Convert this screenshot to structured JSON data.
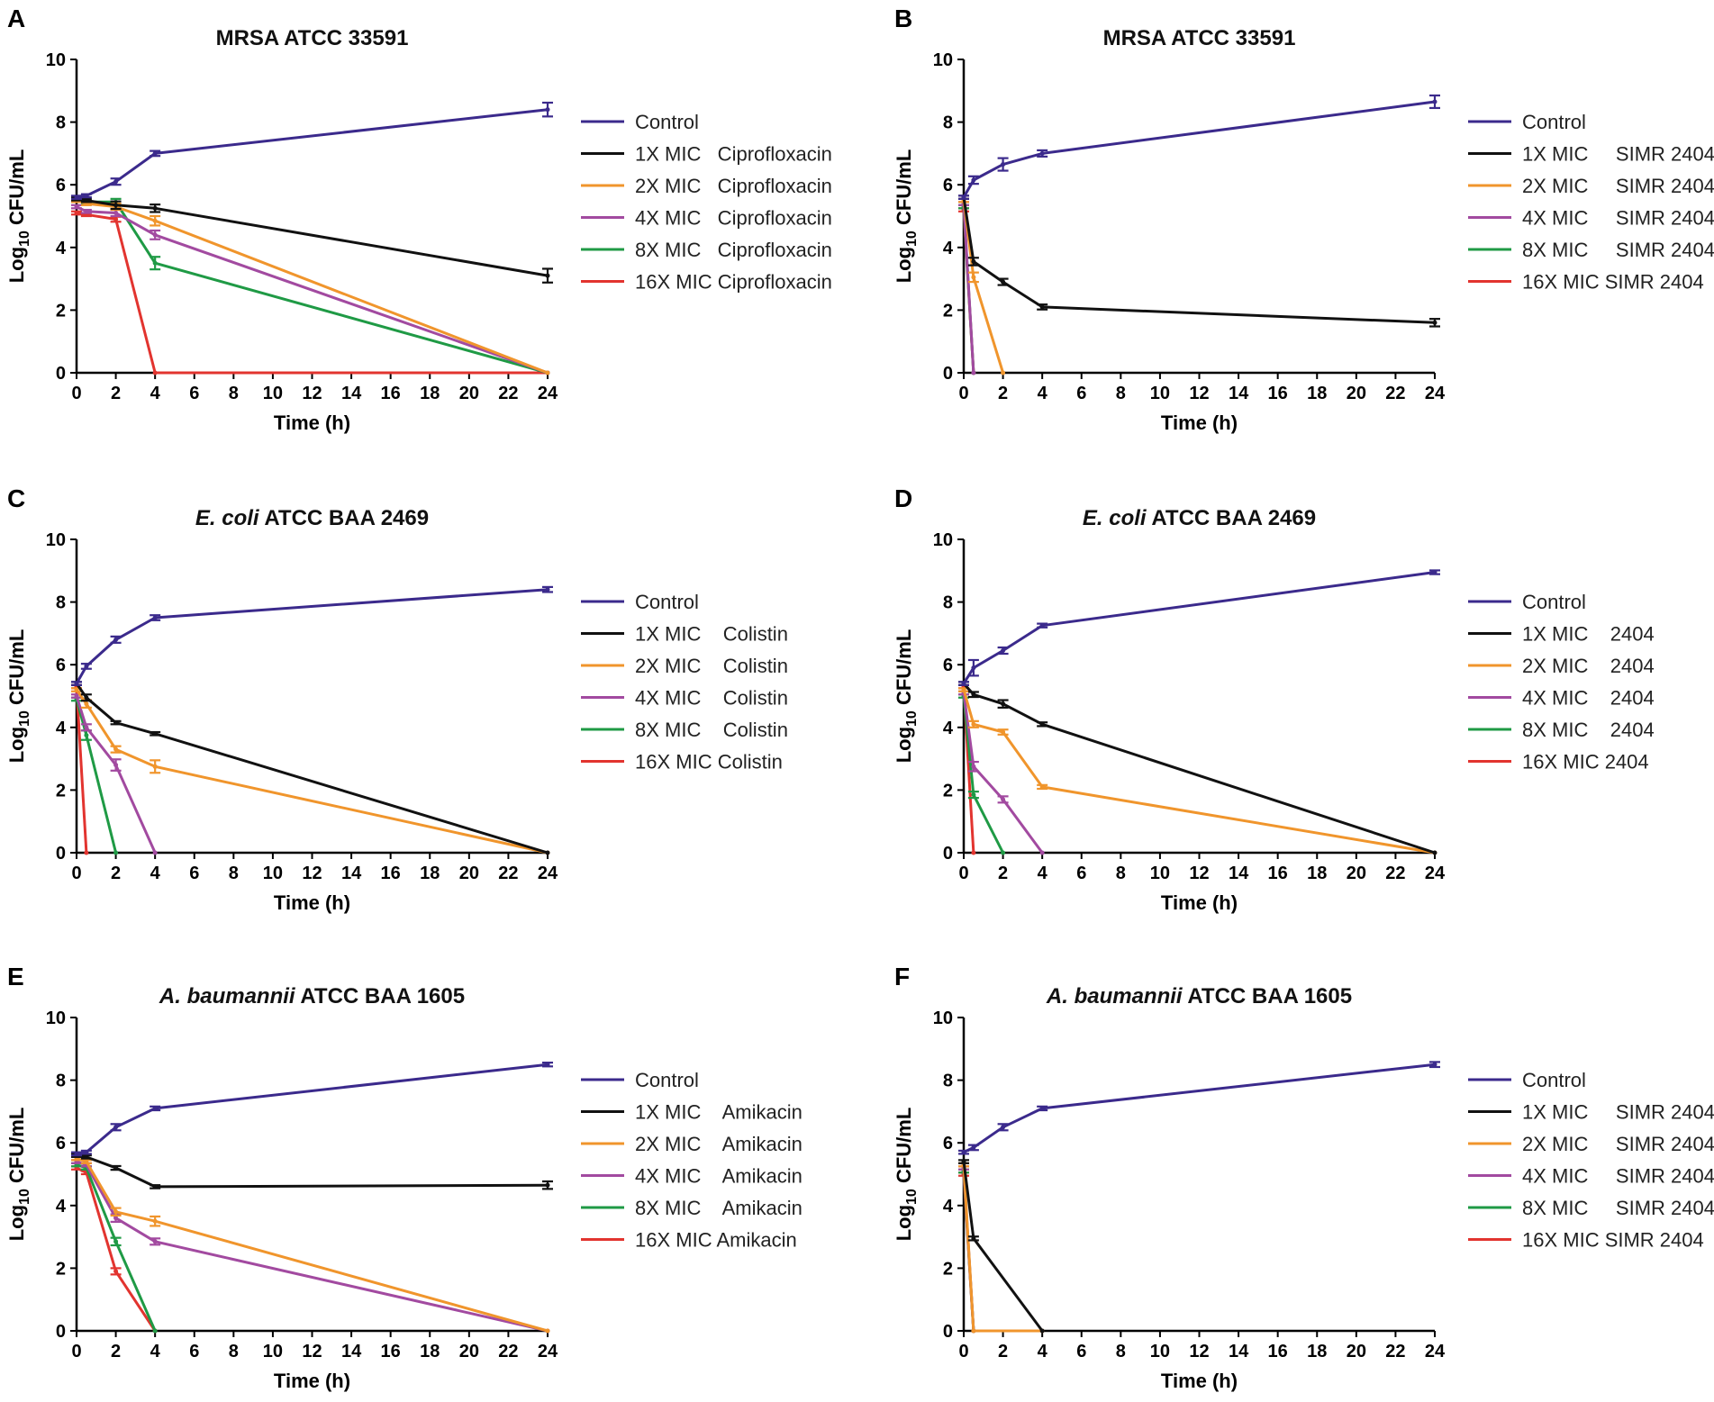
{
  "colors": {
    "control": "#3b2a8c",
    "1x": "#111111",
    "2x": "#f0952c",
    "4x": "#a24aa0",
    "8x": "#1f9a45",
    "16x": "#e2342f"
  },
  "chart_data": [
    {
      "panel": "A",
      "type": "line",
      "title": "MRSA ATCC 33591",
      "xlabel": "Time (h)",
      "ylabel": "Log10 CFU/mL",
      "ylabel_main": "Log",
      "ylabel_sub": "10",
      "ylabel_rest": " CFU/mL",
      "xlim": [
        0,
        24
      ],
      "ylim": [
        0,
        10
      ],
      "xticks": [
        0,
        2,
        4,
        6,
        8,
        10,
        12,
        14,
        16,
        18,
        20,
        22,
        24
      ],
      "yticks": [
        0,
        2,
        4,
        6,
        8,
        10
      ],
      "series": [
        {
          "name": "Control",
          "key": "control",
          "x": [
            0,
            0.5,
            2,
            4,
            24
          ],
          "y": [
            5.6,
            5.65,
            6.1,
            7.0,
            8.4
          ],
          "err": [
            0.05,
            0.05,
            0.1,
            0.08,
            0.22
          ]
        },
        {
          "name": "1X MIC   Ciprofloxacin",
          "key": "1x",
          "x": [
            0,
            0.5,
            2,
            4,
            24
          ],
          "y": [
            5.55,
            5.5,
            5.35,
            5.25,
            3.1
          ],
          "err": [
            0.05,
            0.05,
            0.12,
            0.12,
            0.22
          ]
        },
        {
          "name": "2X MIC   Ciprofloxacin",
          "key": "2x",
          "x": [
            0,
            0.5,
            2,
            4,
            24
          ],
          "y": [
            5.5,
            5.4,
            5.3,
            4.85,
            0
          ],
          "err": [
            0.05,
            0.05,
            0.1,
            0.15,
            0
          ]
        },
        {
          "name": "4X MIC   Ciprofloxacin",
          "key": "4x",
          "x": [
            0,
            0.5,
            2,
            4,
            24
          ],
          "y": [
            5.3,
            5.15,
            5.1,
            4.4,
            0
          ],
          "err": [
            0.05,
            0.05,
            0.1,
            0.14,
            0
          ]
        },
        {
          "name": "8X MIC   Ciprofloxacin",
          "key": "8x",
          "x": [
            0,
            0.5,
            2,
            4,
            24
          ],
          "y": [
            5.5,
            5.45,
            5.45,
            3.5,
            0
          ],
          "err": [
            0.05,
            0.05,
            0.1,
            0.2,
            0
          ]
        },
        {
          "name": "16X MIC Ciprofloxacin",
          "key": "16x",
          "x": [
            0,
            0.5,
            2,
            4,
            24
          ],
          "y": [
            5.1,
            5.05,
            4.9,
            0,
            0
          ],
          "err": [
            0.05,
            0.05,
            0.08,
            0,
            0
          ]
        }
      ]
    },
    {
      "panel": "B",
      "type": "line",
      "title": "MRSA ATCC 33591",
      "xlabel": "Time (h)",
      "ylabel": "Log10 CFU/mL",
      "ylabel_main": "Log",
      "ylabel_sub": "10",
      "ylabel_rest": " CFU/mL",
      "xlim": [
        0,
        24
      ],
      "ylim": [
        0,
        10
      ],
      "xticks": [
        0,
        2,
        4,
        6,
        8,
        10,
        12,
        14,
        16,
        18,
        20,
        22,
        24
      ],
      "yticks": [
        0,
        2,
        4,
        6,
        8,
        10
      ],
      "series": [
        {
          "name": "Control",
          "key": "control",
          "x": [
            0,
            0.5,
            2,
            4,
            24
          ],
          "y": [
            5.6,
            6.15,
            6.65,
            7.0,
            8.65
          ],
          "err": [
            0.05,
            0.12,
            0.2,
            0.1,
            0.2
          ]
        },
        {
          "name": "1X MIC     SIMR 2404",
          "key": "1x",
          "x": [
            0,
            0.5,
            2,
            4,
            24
          ],
          "y": [
            5.6,
            3.55,
            2.9,
            2.1,
            1.6
          ],
          "err": [
            0.05,
            0.12,
            0.1,
            0.08,
            0.12
          ]
        },
        {
          "name": "2X MIC     SIMR 2404",
          "key": "2x",
          "x": [
            0,
            0.5,
            2
          ],
          "y": [
            5.5,
            3.05,
            0
          ],
          "err": [
            0.05,
            0.15,
            0
          ]
        },
        {
          "name": "4X MIC     SIMR 2404",
          "key": "4x",
          "x": [
            0,
            0.5
          ],
          "y": [
            5.4,
            0
          ],
          "err": [
            0.05,
            0
          ]
        },
        {
          "name": "8X MIC     SIMR 2404",
          "key": "8x",
          "x": [
            0,
            0.5
          ],
          "y": [
            5.3,
            0
          ],
          "err": [
            0.05,
            0
          ]
        },
        {
          "name": "16X MIC SIMR 2404",
          "key": "16x",
          "x": [
            0,
            0.5
          ],
          "y": [
            5.2,
            0
          ],
          "err": [
            0.05,
            0
          ]
        }
      ]
    },
    {
      "panel": "C",
      "type": "line",
      "title_italic": "E. coli",
      "title_rest": " ATCC BAA 2469",
      "xlabel": "Time (h)",
      "ylabel": "Log10 CFU/mL",
      "ylabel_main": "Log",
      "ylabel_sub": "10",
      "ylabel_rest": " CFU/mL",
      "xlim": [
        0,
        24
      ],
      "ylim": [
        0,
        10
      ],
      "xticks": [
        0,
        2,
        4,
        6,
        8,
        10,
        12,
        14,
        16,
        18,
        20,
        22,
        24
      ],
      "yticks": [
        0,
        2,
        4,
        6,
        8,
        10
      ],
      "series": [
        {
          "name": "Control",
          "key": "control",
          "x": [
            0,
            0.5,
            2,
            4,
            24
          ],
          "y": [
            5.4,
            5.95,
            6.8,
            7.5,
            8.4
          ],
          "err": [
            0.05,
            0.08,
            0.1,
            0.08,
            0.08
          ]
        },
        {
          "name": "1X MIC    Colistin",
          "key": "1x",
          "x": [
            0,
            0.5,
            2,
            4,
            24
          ],
          "y": [
            5.4,
            4.95,
            4.15,
            3.8,
            0
          ],
          "err": [
            0.05,
            0.1,
            0.05,
            0.05,
            0
          ]
        },
        {
          "name": "2X MIC    Colistin",
          "key": "2x",
          "x": [
            0,
            0.5,
            2,
            4,
            24
          ],
          "y": [
            5.2,
            4.75,
            3.3,
            2.75,
            0
          ],
          "err": [
            0.05,
            0.12,
            0.1,
            0.2,
            0
          ]
        },
        {
          "name": "4X MIC    Colistin",
          "key": "4x",
          "x": [
            0,
            0.5,
            2,
            4
          ],
          "y": [
            5.0,
            4.0,
            2.8,
            0
          ],
          "err": [
            0.05,
            0.1,
            0.18,
            0
          ]
        },
        {
          "name": "8X MIC    Colistin",
          "key": "8x",
          "x": [
            0,
            0.5,
            2
          ],
          "y": [
            4.9,
            3.75,
            0
          ],
          "err": [
            0.05,
            0.15,
            0
          ]
        },
        {
          "name": "16X MIC Colistin",
          "key": "16x",
          "x": [
            0,
            0.5
          ],
          "y": [
            5.3,
            0
          ],
          "err": [
            0.05,
            0
          ]
        }
      ]
    },
    {
      "panel": "D",
      "type": "line",
      "title_italic": "E. coli",
      "title_rest": " ATCC BAA 2469",
      "xlabel": "Time (h)",
      "ylabel": "Log10 CFU/mL",
      "ylabel_main": "Log",
      "ylabel_sub": "10",
      "ylabel_rest": " CFU/mL",
      "xlim": [
        0,
        24
      ],
      "ylim": [
        0,
        10
      ],
      "xticks": [
        0,
        2,
        4,
        6,
        8,
        10,
        12,
        14,
        16,
        18,
        20,
        22,
        24
      ],
      "yticks": [
        0,
        2,
        4,
        6,
        8,
        10
      ],
      "series": [
        {
          "name": "Control",
          "key": "control",
          "x": [
            0,
            0.5,
            2,
            4,
            24
          ],
          "y": [
            5.4,
            5.9,
            6.45,
            7.25,
            8.95
          ],
          "err": [
            0.05,
            0.25,
            0.1,
            0.06,
            0.06
          ]
        },
        {
          "name": "1X MIC    2404",
          "key": "1x",
          "x": [
            0,
            0.5,
            2,
            4,
            24
          ],
          "y": [
            5.4,
            5.05,
            4.75,
            4.1,
            0
          ],
          "err": [
            0.05,
            0.08,
            0.12,
            0.06,
            0
          ]
        },
        {
          "name": "2X MIC    2404",
          "key": "2x",
          "x": [
            0,
            0.5,
            2,
            4,
            24
          ],
          "y": [
            5.2,
            4.1,
            3.85,
            2.1,
            0
          ],
          "err": [
            0.05,
            0.1,
            0.08,
            0.06,
            0
          ]
        },
        {
          "name": "4X MIC    2404",
          "key": "4x",
          "x": [
            0,
            0.5,
            2,
            4
          ],
          "y": [
            5.1,
            2.75,
            1.7,
            0
          ],
          "err": [
            0.05,
            0.15,
            0.1,
            0
          ]
        },
        {
          "name": "8X MIC    2404",
          "key": "8x",
          "x": [
            0,
            0.5,
            2
          ],
          "y": [
            5.0,
            1.85,
            0
          ],
          "err": [
            0.05,
            0.1,
            0
          ]
        },
        {
          "name": "16X MIC 2404",
          "key": "16x",
          "x": [
            0,
            0.5
          ],
          "y": [
            5.3,
            0
          ],
          "err": [
            0.05,
            0
          ]
        }
      ]
    },
    {
      "panel": "E",
      "type": "line",
      "title_italic": "A. baumannii",
      "title_rest": " ATCC BAA 1605",
      "xlabel": "Time (h)",
      "ylabel": "Log10 CFU/mL",
      "ylabel_main": "Log",
      "ylabel_sub": "10",
      "ylabel_rest": " CFU/mL",
      "xlim": [
        0,
        24
      ],
      "ylim": [
        0,
        10
      ],
      "xticks": [
        0,
        2,
        4,
        6,
        8,
        10,
        12,
        14,
        16,
        18,
        20,
        22,
        24
      ],
      "yticks": [
        0,
        2,
        4,
        6,
        8,
        10
      ],
      "series": [
        {
          "name": "Control",
          "key": "control",
          "x": [
            0,
            0.5,
            2,
            4,
            24
          ],
          "y": [
            5.65,
            5.7,
            6.5,
            7.1,
            8.5
          ],
          "err": [
            0.05,
            0.05,
            0.1,
            0.06,
            0.06
          ]
        },
        {
          "name": "1X MIC    Amikacin",
          "key": "1x",
          "x": [
            0,
            0.5,
            2,
            4,
            24
          ],
          "y": [
            5.6,
            5.55,
            5.2,
            4.6,
            4.65
          ],
          "err": [
            0.05,
            0.05,
            0.06,
            0.05,
            0.12
          ]
        },
        {
          "name": "2X MIC    Amikacin",
          "key": "2x",
          "x": [
            0,
            0.5,
            2,
            4,
            24
          ],
          "y": [
            5.5,
            5.4,
            3.8,
            3.5,
            0
          ],
          "err": [
            0.05,
            0.05,
            0.12,
            0.15,
            0
          ]
        },
        {
          "name": "4X MIC    Amikacin",
          "key": "4x",
          "x": [
            0,
            0.5,
            2,
            4,
            24
          ],
          "y": [
            5.4,
            5.3,
            3.6,
            2.85,
            0
          ],
          "err": [
            0.05,
            0.05,
            0.12,
            0.1,
            0
          ]
        },
        {
          "name": "8X MIC    Amikacin",
          "key": "8x",
          "x": [
            0,
            0.5,
            2,
            4
          ],
          "y": [
            5.3,
            5.2,
            2.85,
            0
          ],
          "err": [
            0.05,
            0.05,
            0.12,
            0
          ]
        },
        {
          "name": "16X MIC Amikacin",
          "key": "16x",
          "x": [
            0,
            0.5,
            2,
            4
          ],
          "y": [
            5.2,
            5.05,
            1.9,
            0
          ],
          "err": [
            0.05,
            0.05,
            0.1,
            0
          ]
        }
      ]
    },
    {
      "panel": "F",
      "type": "line",
      "title_italic": "A. baumannii",
      "title_rest": " ATCC BAA 1605",
      "xlabel": "Time (h)",
      "ylabel": "Log10 CFU/mL",
      "ylabel_main": "Log",
      "ylabel_sub": "10",
      "ylabel_rest": " CFU/mL",
      "xlim": [
        0,
        24
      ],
      "ylim": [
        0,
        10
      ],
      "xticks": [
        0,
        2,
        4,
        6,
        8,
        10,
        12,
        14,
        16,
        18,
        20,
        22,
        24
      ],
      "yticks": [
        0,
        2,
        4,
        6,
        8,
        10
      ],
      "series": [
        {
          "name": "Control",
          "key": "control",
          "x": [
            0,
            0.5,
            2,
            4,
            24
          ],
          "y": [
            5.7,
            5.85,
            6.5,
            7.1,
            8.5
          ],
          "err": [
            0.05,
            0.08,
            0.1,
            0.06,
            0.08
          ]
        },
        {
          "name": "1X MIC     SIMR 2404",
          "key": "1x",
          "x": [
            0,
            0.5,
            4
          ],
          "y": [
            5.4,
            2.95,
            0
          ],
          "err": [
            0.05,
            0.06,
            0
          ]
        },
        {
          "name": "2X MIC     SIMR 2404",
          "key": "2x",
          "x": [
            0,
            0.5,
            4
          ],
          "y": [
            5.3,
            0,
            0
          ],
          "err": [
            0.05,
            0,
            0
          ]
        },
        {
          "name": "4X MIC     SIMR 2404",
          "key": "4x",
          "x": [
            0,
            0.5
          ],
          "y": [
            5.2,
            0
          ],
          "err": [
            0.05,
            0
          ]
        },
        {
          "name": "8X MIC     SIMR 2404",
          "key": "8x",
          "x": [
            0,
            0.5
          ],
          "y": [
            5.1,
            0
          ],
          "err": [
            0.05,
            0
          ]
        },
        {
          "name": "16X MIC SIMR 2404",
          "key": "16x",
          "x": [
            0,
            0.5
          ],
          "y": [
            5.0,
            0
          ],
          "err": [
            0.05,
            0
          ]
        }
      ]
    }
  ]
}
